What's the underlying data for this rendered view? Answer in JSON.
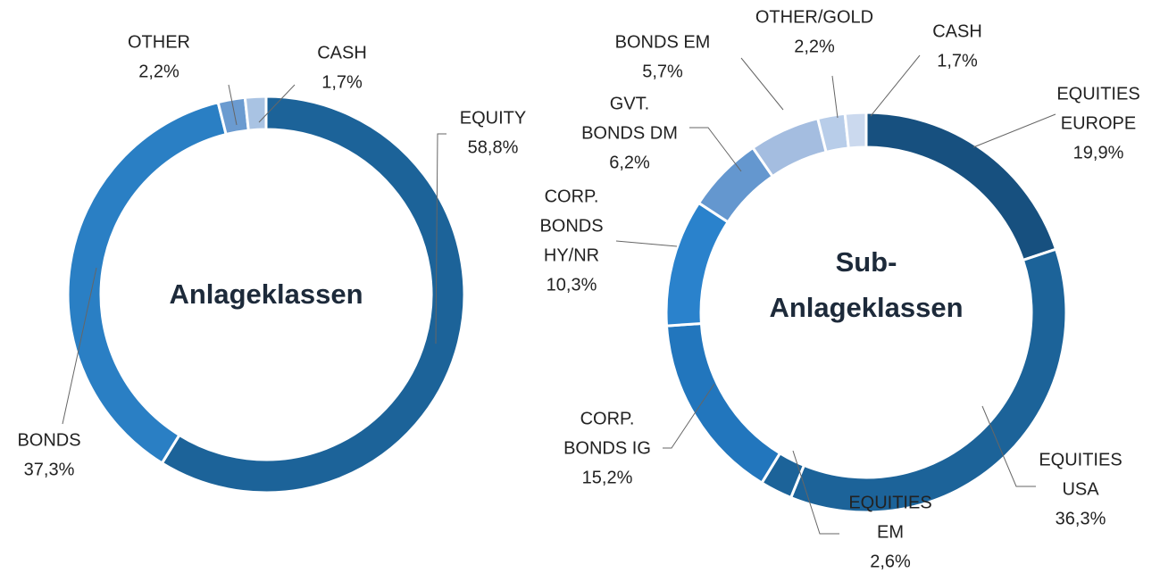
{
  "chart_data": [
    {
      "type": "donut",
      "title": "Anlageklassen",
      "categories": [
        [
          "EQUITY"
        ],
        [
          "BONDS"
        ],
        [
          "OTHER"
        ],
        [
          "CASH"
        ]
      ],
      "values": [
        58.8,
        37.3,
        2.2,
        1.7
      ],
      "value_labels": [
        "58,8%",
        "37,3%",
        "2,2%",
        "1,7%"
      ],
      "colors": [
        "#1c6399",
        "#2a7fc4",
        "#6b9bd0",
        "#a9c3e3"
      ]
    },
    {
      "type": "donut",
      "title": [
        "Sub-",
        "Anlageklassen"
      ],
      "categories": [
        [
          "EQUITIES",
          "EUROPE"
        ],
        [
          "EQUITIES",
          "USA"
        ],
        [
          "EQUITIES",
          "EM"
        ],
        [
          "CORP.",
          "BONDS IG"
        ],
        [
          "CORP.",
          "BONDS",
          "HY/NR"
        ],
        [
          "GVT.",
          "BONDS DM"
        ],
        [
          "BONDS EM"
        ],
        [
          "OTHER/GOLD"
        ],
        [
          "CASH"
        ]
      ],
      "values": [
        19.9,
        36.3,
        2.6,
        15.2,
        10.3,
        6.2,
        5.7,
        2.2,
        1.7
      ],
      "value_labels": [
        "19,9%",
        "36,3%",
        "2,6%",
        "15,2%",
        "10,3%",
        "6,2%",
        "5,7%",
        "2,2%",
        "1,7%"
      ],
      "colors": [
        "#17507f",
        "#1c6399",
        "#1c6399",
        "#2276bd",
        "#2a82cc",
        "#6497cf",
        "#a4bde0",
        "#b8cde9",
        "#cbd9ee"
      ]
    }
  ]
}
